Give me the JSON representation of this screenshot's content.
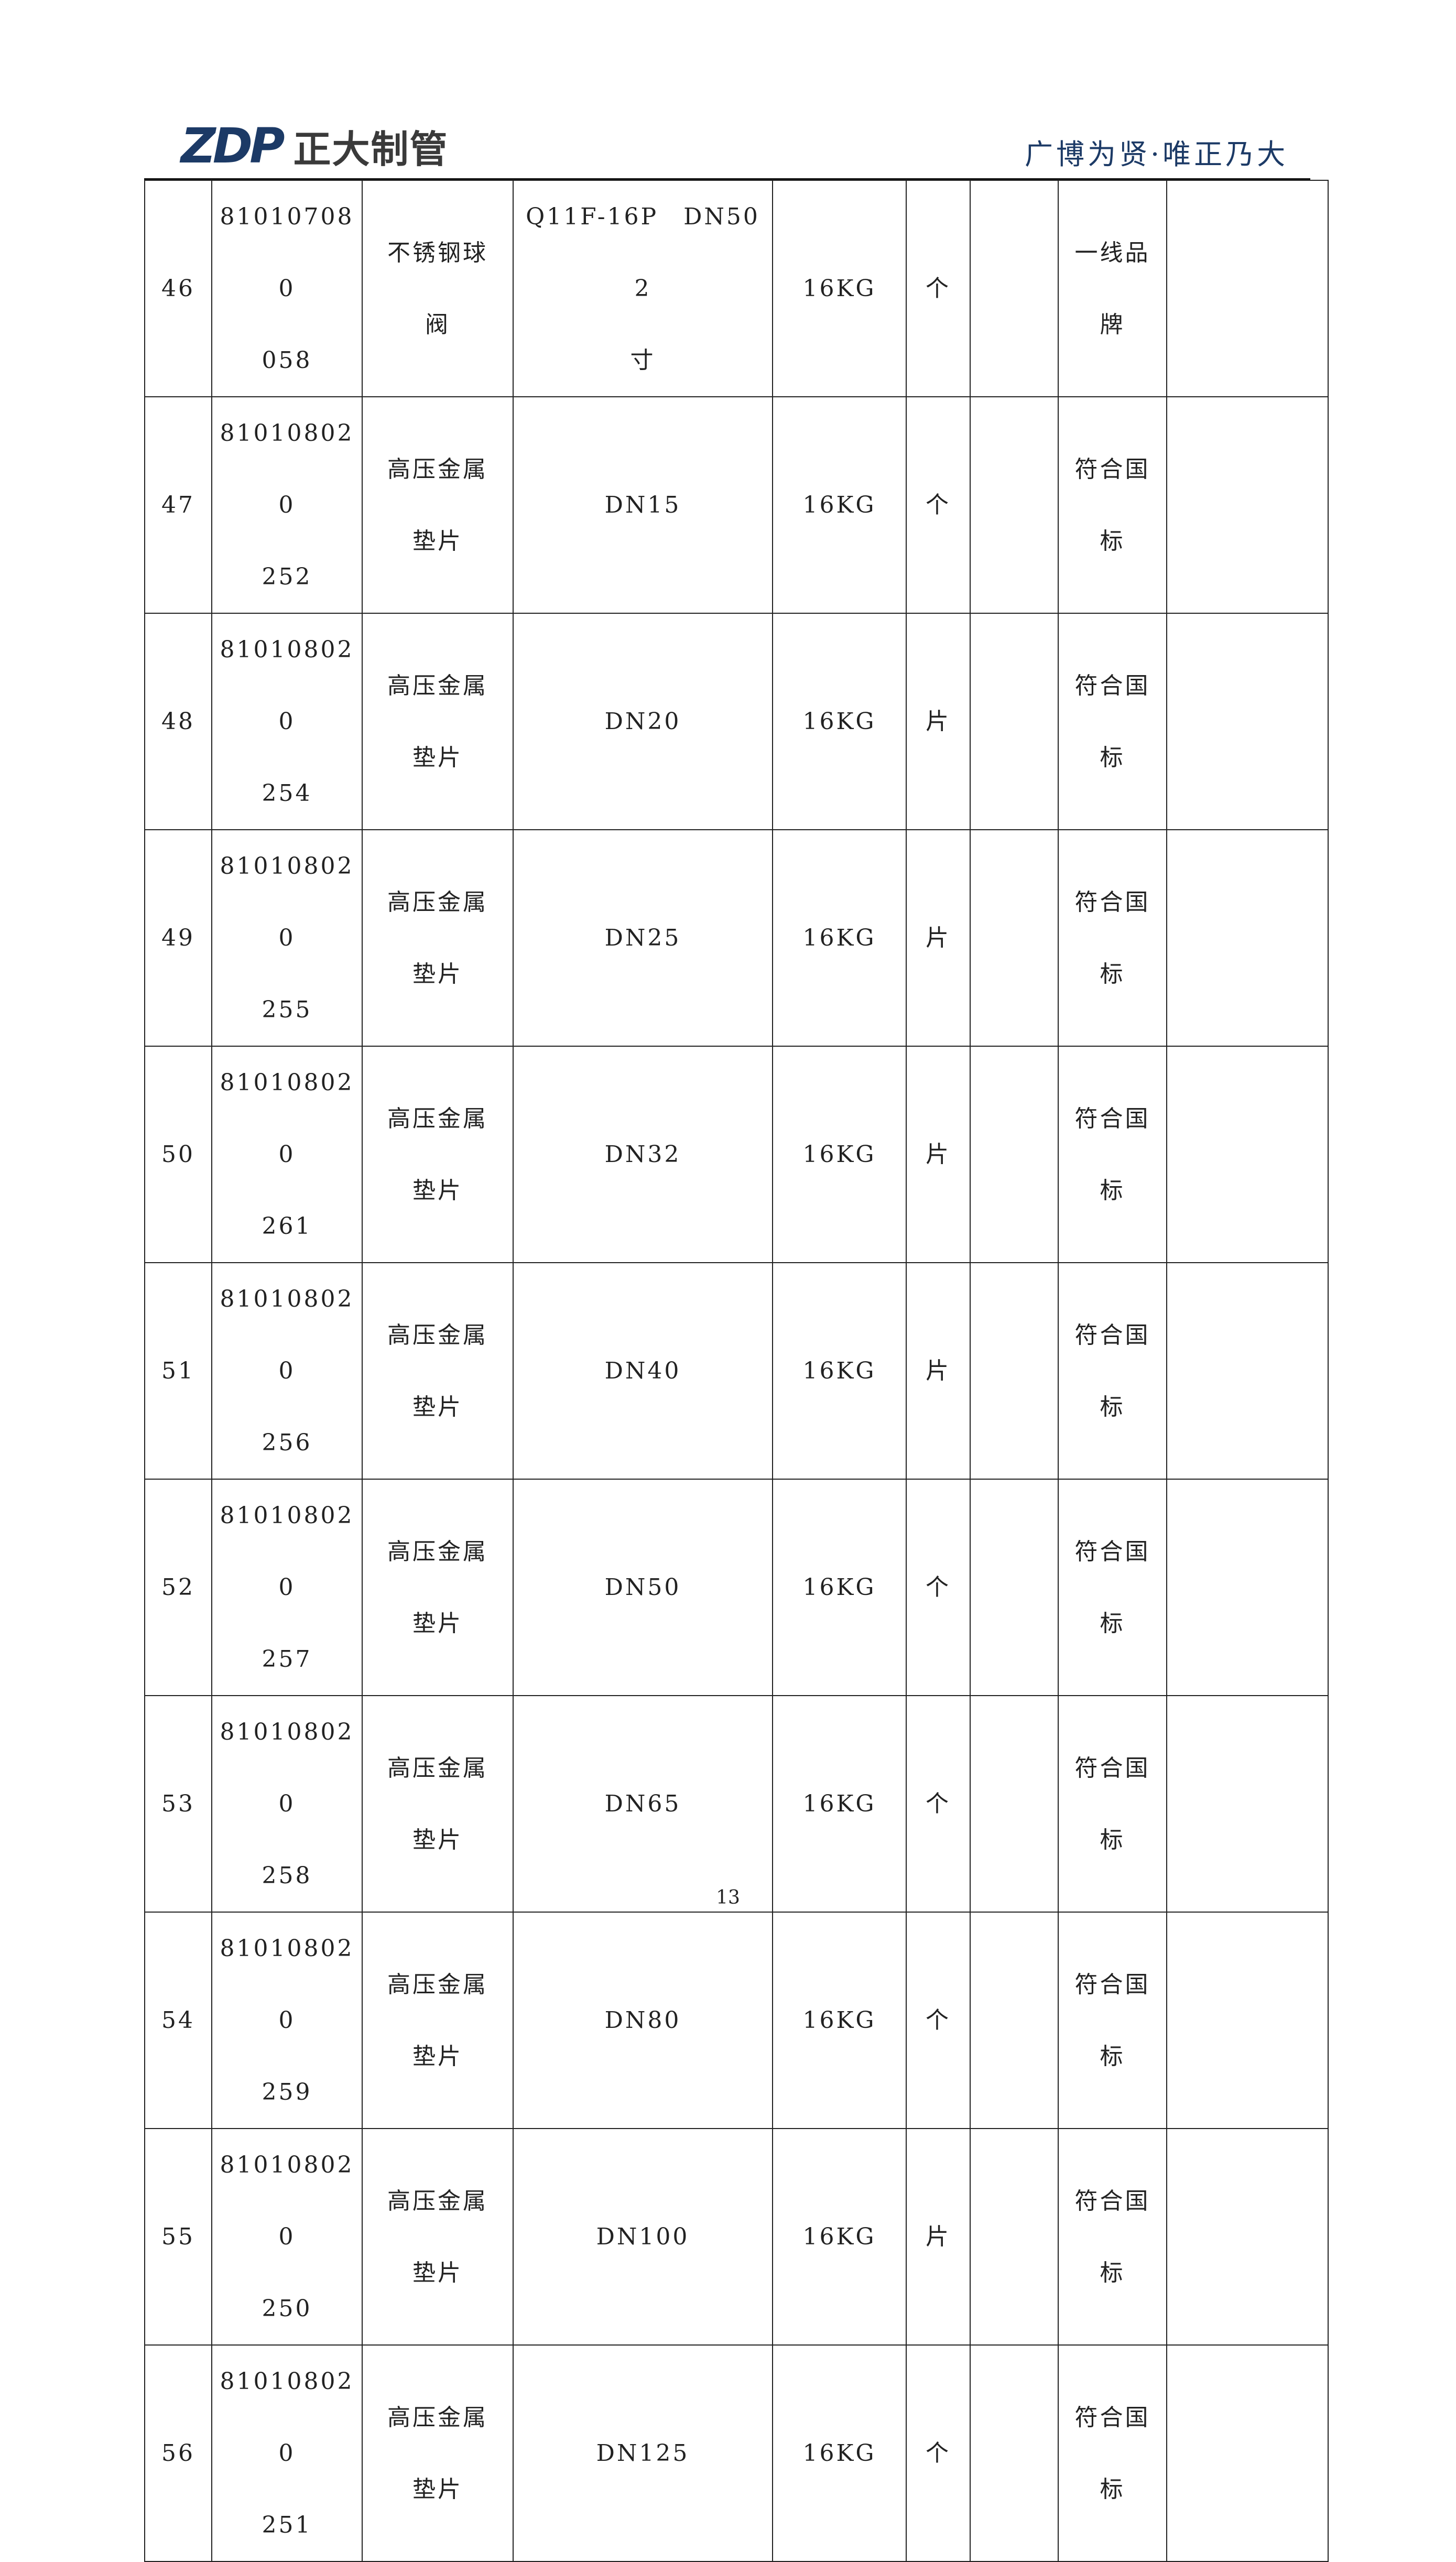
{
  "header": {
    "logo_mark": "ZDP",
    "logo_text": "正大制管",
    "tagline": "广博为贤·唯正乃大"
  },
  "rows": [
    {
      "no": "46",
      "code": [
        "810107080",
        "058"
      ],
      "name": [
        "不锈钢球",
        "阀"
      ],
      "spec": [
        "Q11F-16P　DN50 2",
        "寸"
      ],
      "pressure": "16KG",
      "unit": "个",
      "qty": "",
      "remark": [
        "一线品",
        "牌"
      ],
      "note": ""
    },
    {
      "no": "47",
      "code": [
        "810108020",
        "252"
      ],
      "name": [
        "高压金属",
        "垫片"
      ],
      "spec": [
        "DN15"
      ],
      "pressure": "16KG",
      "unit": "个",
      "qty": "",
      "remark": [
        "符合国",
        "标"
      ],
      "note": ""
    },
    {
      "no": "48",
      "code": [
        "810108020",
        "254"
      ],
      "name": [
        "高压金属",
        "垫片"
      ],
      "spec": [
        "DN20"
      ],
      "pressure": "16KG",
      "unit": "片",
      "qty": "",
      "remark": [
        "符合国",
        "标"
      ],
      "note": ""
    },
    {
      "no": "49",
      "code": [
        "810108020",
        "255"
      ],
      "name": [
        "高压金属",
        "垫片"
      ],
      "spec": [
        "DN25"
      ],
      "pressure": "16KG",
      "unit": "片",
      "qty": "",
      "remark": [
        "符合国",
        "标"
      ],
      "note": ""
    },
    {
      "no": "50",
      "code": [
        "810108020",
        "261"
      ],
      "name": [
        "高压金属",
        "垫片"
      ],
      "spec": [
        "DN32"
      ],
      "pressure": "16KG",
      "unit": "片",
      "qty": "",
      "remark": [
        "符合国",
        "标"
      ],
      "note": ""
    },
    {
      "no": "51",
      "code": [
        "810108020",
        "256"
      ],
      "name": [
        "高压金属",
        "垫片"
      ],
      "spec": [
        "DN40"
      ],
      "pressure": "16KG",
      "unit": "片",
      "qty": "",
      "remark": [
        "符合国",
        "标"
      ],
      "note": ""
    },
    {
      "no": "52",
      "code": [
        "810108020",
        "257"
      ],
      "name": [
        "高压金属",
        "垫片"
      ],
      "spec": [
        "DN50"
      ],
      "pressure": "16KG",
      "unit": "个",
      "qty": "",
      "remark": [
        "符合国",
        "标"
      ],
      "note": ""
    },
    {
      "no": "53",
      "code": [
        "810108020",
        "258"
      ],
      "name": [
        "高压金属",
        "垫片"
      ],
      "spec": [
        "DN65"
      ],
      "pressure": "16KG",
      "unit": "个",
      "qty": "",
      "remark": [
        "符合国",
        "标"
      ],
      "note": ""
    },
    {
      "no": "54",
      "code": [
        "810108020",
        "259"
      ],
      "name": [
        "高压金属",
        "垫片"
      ],
      "spec": [
        "DN80"
      ],
      "pressure": "16KG",
      "unit": "个",
      "qty": "",
      "remark": [
        "符合国",
        "标"
      ],
      "note": ""
    },
    {
      "no": "55",
      "code": [
        "810108020",
        "250"
      ],
      "name": [
        "高压金属",
        "垫片"
      ],
      "spec": [
        "DN100"
      ],
      "pressure": "16KG",
      "unit": "片",
      "qty": "",
      "remark": [
        "符合国",
        "标"
      ],
      "note": ""
    },
    {
      "no": "56",
      "code": [
        "810108020",
        "251"
      ],
      "name": [
        "高压金属",
        "垫片"
      ],
      "spec": [
        "DN125"
      ],
      "pressure": "16KG",
      "unit": "个",
      "qty": "",
      "remark": [
        "符合国",
        "标"
      ],
      "note": ""
    }
  ],
  "page_number": "13"
}
